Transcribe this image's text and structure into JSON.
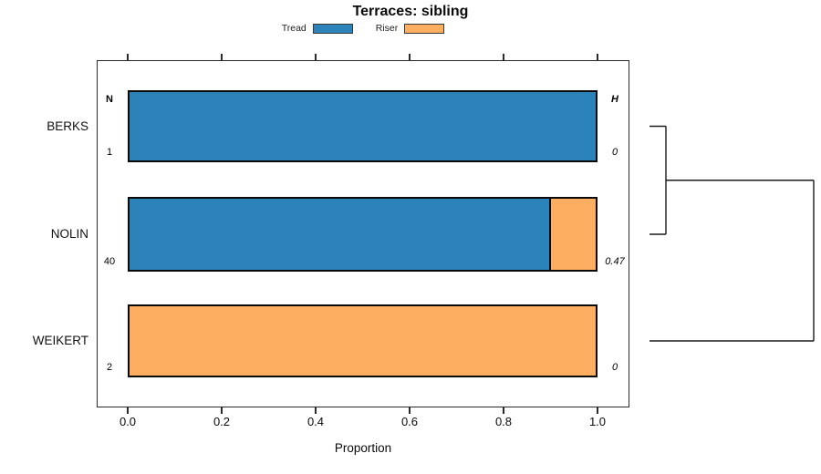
{
  "chart_data": {
    "type": "bar",
    "orientation": "horizontal",
    "stacked": true,
    "title": "Terraces: sibling",
    "xlabel": "Proportion",
    "xlim": [
      0,
      1
    ],
    "x_ticks": [
      "0.0",
      "0.2",
      "0.4",
      "0.6",
      "0.8",
      "1.0"
    ],
    "categories": [
      "BERKS",
      "NOLIN",
      "WEIKERT"
    ],
    "series": [
      {
        "name": "Tread",
        "color": "#2B83BA",
        "values": [
          1.0,
          0.9,
          0.0
        ]
      },
      {
        "name": "Riser",
        "color": "#FDAE61",
        "values": [
          0.0,
          0.1,
          1.0
        ]
      }
    ],
    "columns": {
      "n": {
        "header": "N",
        "values": [
          "1",
          "40",
          "2"
        ]
      },
      "h": {
        "header": "H",
        "values": [
          "0",
          "0.47",
          "0"
        ]
      }
    },
    "legend_position": "top",
    "grid": false,
    "dendrogram": {
      "merges": [
        {
          "children": [
            {
              "leaf": 0
            },
            {
              "leaf": 1
            }
          ],
          "relative_distance": 0.1
        },
        {
          "children": [
            {
              "merge": 0
            },
            {
              "leaf": 2
            }
          ],
          "relative_distance": 1.0
        }
      ]
    }
  }
}
